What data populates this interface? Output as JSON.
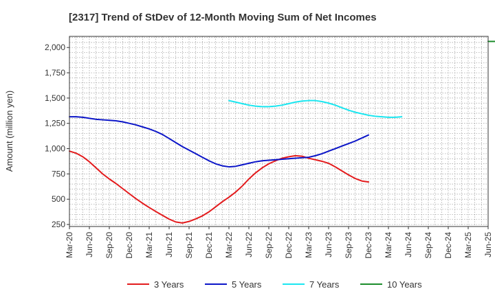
{
  "chart_data": {
    "type": "line",
    "title": "[2317]  Trend of StDev of 12-Month Moving Sum of Net Incomes",
    "xlabel": "",
    "ylabel": "Amount (million yen)",
    "ylim": [
      230,
      2110
    ],
    "yticks": [
      250,
      500,
      750,
      1000,
      1250,
      1500,
      1750,
      2000
    ],
    "ytick_labels": [
      "250",
      "500",
      "750",
      "1,000",
      "1,250",
      "1,500",
      "1,750",
      "2,000"
    ],
    "x_tick_labels": [
      "Mar-20",
      "Jun-20",
      "Sep-20",
      "Dec-20",
      "Mar-21",
      "Jun-21",
      "Sep-21",
      "Dec-21",
      "Mar-22",
      "Jun-22",
      "Sep-22",
      "Dec-22",
      "Mar-23",
      "Jun-23",
      "Sep-23",
      "Dec-23",
      "Mar-24",
      "Jun-24",
      "Sep-24",
      "Dec-24",
      "Mar-25",
      "Jun-25"
    ],
    "grid": true,
    "legend_position": "bottom",
    "series": [
      {
        "name": "3 Years",
        "color": "#e31a1c",
        "start_index": 0,
        "values": [
          975,
          955,
          920,
          870,
          810,
          750,
          700,
          655,
          605,
          555,
          505,
          460,
          418,
          378,
          340,
          303,
          275,
          265,
          280,
          305,
          335,
          375,
          425,
          475,
          520,
          570,
          630,
          700,
          760,
          810,
          850,
          880,
          905,
          920,
          930,
          925,
          905,
          890,
          875,
          855,
          820,
          780,
          740,
          705,
          680,
          670
        ]
      },
      {
        "name": "5 Years",
        "color": "#0a14c8",
        "start_index": 0,
        "values": [
          1315,
          1315,
          1310,
          1300,
          1290,
          1285,
          1280,
          1275,
          1265,
          1250,
          1235,
          1215,
          1195,
          1170,
          1140,
          1100,
          1060,
          1020,
          985,
          950,
          915,
          880,
          850,
          830,
          820,
          825,
          840,
          855,
          870,
          880,
          885,
          890,
          895,
          900,
          905,
          910,
          915,
          930,
          950,
          975,
          1000,
          1025,
          1050,
          1075,
          1105,
          1135
        ]
      },
      {
        "name": "7 Years",
        "color": "#19e6f0",
        "start_index": 24,
        "values": [
          1475,
          1460,
          1445,
          1430,
          1420,
          1415,
          1415,
          1420,
          1430,
          1445,
          1460,
          1470,
          1475,
          1475,
          1465,
          1450,
          1430,
          1405,
          1380,
          1360,
          1345,
          1330,
          1320,
          1315,
          1310,
          1310,
          1315
        ]
      },
      {
        "name": "10 Years",
        "color": "#1a8c2a",
        "start_index": 63,
        "values": [
          2060,
          2060
        ]
      }
    ]
  }
}
